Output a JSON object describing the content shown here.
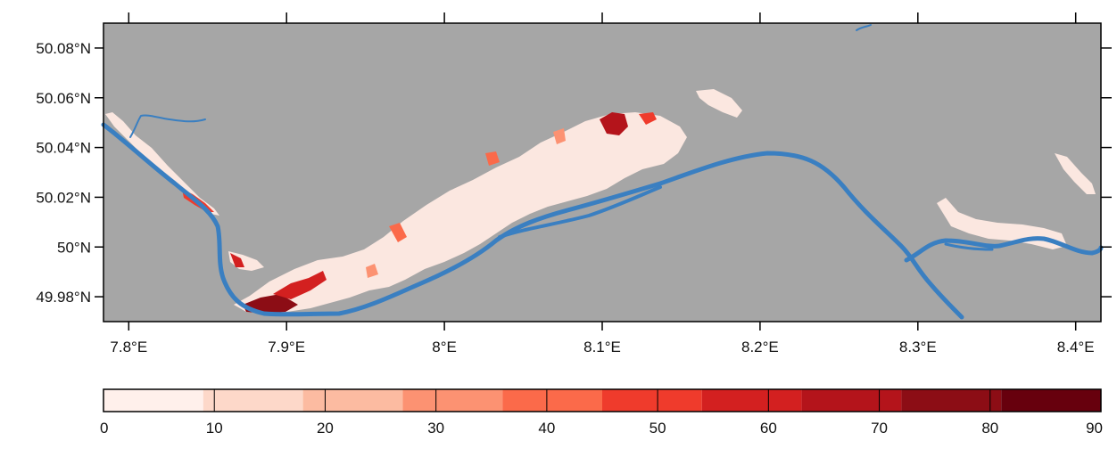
{
  "map": {
    "background_color": "#a6a6a6",
    "river_color": "#3a7fc1",
    "vineyard_base_color": "#fbe7e0",
    "x_ticks": [
      {
        "value": 7.8,
        "label": "7.8°E"
      },
      {
        "value": 7.9,
        "label": "7.9°E"
      },
      {
        "value": 8.0,
        "label": "8°E"
      },
      {
        "value": 8.1,
        "label": "8.1°E"
      },
      {
        "value": 8.2,
        "label": "8.2°E"
      },
      {
        "value": 8.3,
        "label": "8.3°E"
      },
      {
        "value": 8.4,
        "label": "8.4°E"
      }
    ],
    "y_ticks": [
      {
        "value": 49.98,
        "label": "49.98°N"
      },
      {
        "value": 50.0,
        "label": "50°N"
      },
      {
        "value": 50.02,
        "label": "50.02°N"
      },
      {
        "value": 50.04,
        "label": "50.04°N"
      },
      {
        "value": 50.06,
        "label": "50.06°N"
      },
      {
        "value": 50.08,
        "label": "50.08°N"
      }
    ],
    "lon_range": [
      7.784,
      8.416
    ],
    "lat_range": [
      49.97,
      50.09
    ]
  },
  "colorbar": {
    "ticks": [
      "0",
      "10",
      "20",
      "30",
      "40",
      "50",
      "60",
      "70",
      "80",
      "90"
    ],
    "colors": [
      "#fff0eb",
      "#fdd8c9",
      "#fcbba1",
      "#fc9272",
      "#fb6a4a",
      "#ef3b2c",
      "#d32020",
      "#b4141b",
      "#8c0d15",
      "#67000d"
    ]
  }
}
